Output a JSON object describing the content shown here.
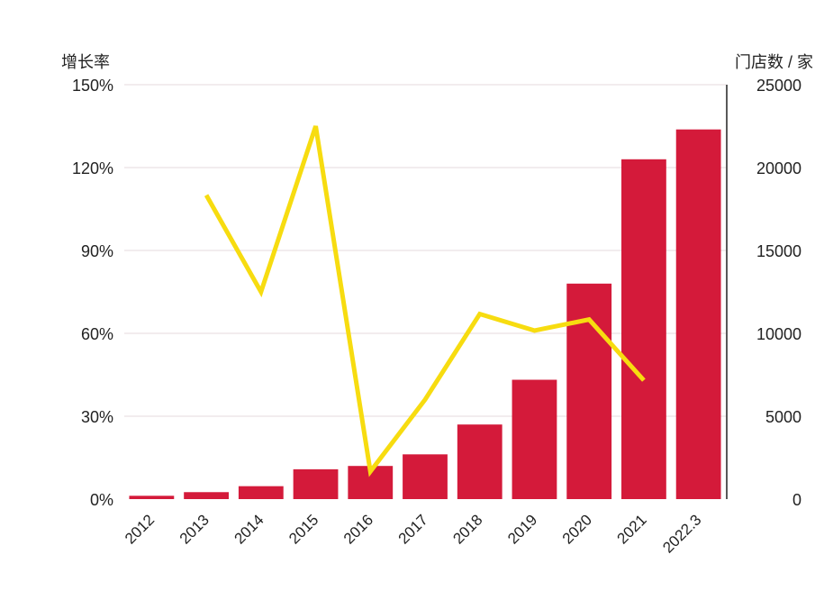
{
  "chart_data": {
    "type": "bar",
    "left_axis_title": "增长率",
    "right_axis_title": "门店数 / 家",
    "categories": [
      "2012",
      "2013",
      "2014",
      "2015",
      "2016",
      "2017",
      "2018",
      "2019",
      "2020",
      "2021",
      "2022.3"
    ],
    "left_ticks": [
      "0%",
      "30%",
      "60%",
      "90%",
      "120%",
      "150%"
    ],
    "right_ticks": [
      "0",
      "5000",
      "10000",
      "15000",
      "20000",
      "25000"
    ],
    "left_ylim": [
      0,
      150
    ],
    "right_ylim": [
      0,
      25000
    ],
    "grid": true,
    "series": [
      {
        "type": "bar",
        "axis": "right",
        "color": "#d41a3a",
        "values": [
          200,
          420,
          780,
          1800,
          2000,
          2700,
          4500,
          7200,
          13000,
          20500,
          22300
        ]
      },
      {
        "type": "line",
        "axis": "left",
        "color": "#f7dc10",
        "values": [
          null,
          110,
          75,
          135,
          10,
          36,
          67,
          61,
          65,
          43,
          null
        ]
      }
    ]
  }
}
